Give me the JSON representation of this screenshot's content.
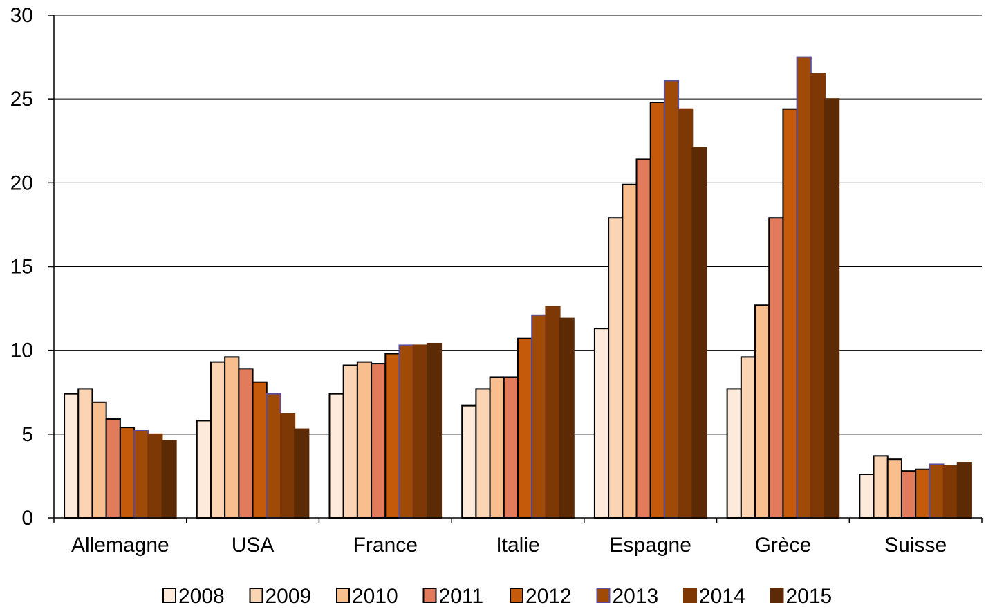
{
  "chart_data": {
    "type": "bar",
    "title": "",
    "xlabel": "",
    "ylabel": "",
    "ylim": [
      0,
      30
    ],
    "yticks": [
      0,
      5,
      10,
      15,
      20,
      25,
      30
    ],
    "grid": "horizontal",
    "legend_position": "bottom",
    "categories": [
      "Allemagne",
      "USA",
      "France",
      "Italie",
      "Espagne",
      "Grèce",
      "Suisse"
    ],
    "series": [
      {
        "name": "2008",
        "color": "#FDEADA",
        "values": [
          7.4,
          5.8,
          7.4,
          6.7,
          11.3,
          7.7,
          2.6
        ]
      },
      {
        "name": "2009",
        "color": "#FBD4B4",
        "values": [
          7.7,
          9.3,
          9.1,
          7.7,
          17.9,
          9.6,
          3.7
        ]
      },
      {
        "name": "2010",
        "color": "#F8BE8E",
        "values": [
          6.9,
          9.6,
          9.3,
          8.4,
          19.9,
          12.7,
          3.5
        ]
      },
      {
        "name": "2011",
        "color": "#E27A5C",
        "values": [
          5.9,
          8.9,
          9.2,
          8.4,
          21.4,
          17.9,
          2.8
        ]
      },
      {
        "name": "2012",
        "color": "#C55A0A",
        "values": [
          5.4,
          8.1,
          9.8,
          10.7,
          24.8,
          24.4,
          2.9
        ]
      },
      {
        "name": "2013",
        "color": "#A04A08",
        "values": [
          5.2,
          7.4,
          10.3,
          12.1,
          26.1,
          27.5,
          3.2
        ]
      },
      {
        "name": "2014",
        "color": "#7E3806",
        "values": [
          5.0,
          6.2,
          10.3,
          12.6,
          24.4,
          26.5,
          3.1
        ]
      },
      {
        "name": "2015",
        "color": "#5C2A05",
        "values": [
          4.6,
          5.3,
          10.4,
          11.9,
          22.1,
          25.0,
          3.3
        ]
      }
    ]
  }
}
